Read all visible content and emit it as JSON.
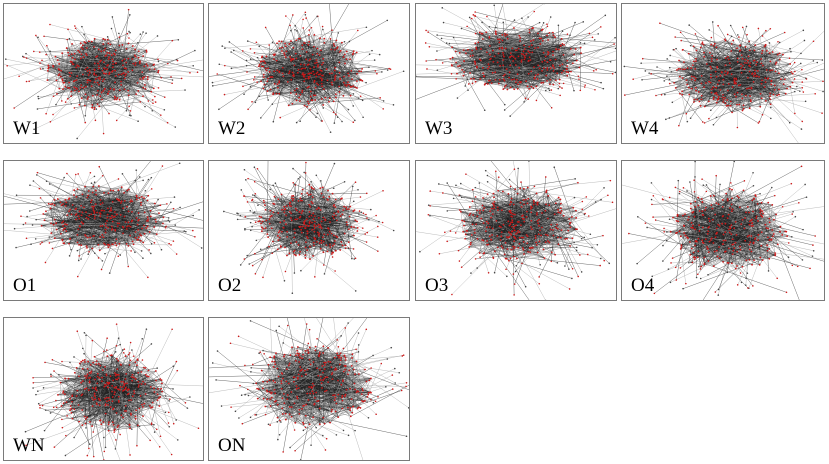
{
  "figure": {
    "panels": [
      {
        "id": "W1",
        "label": "W1"
      },
      {
        "id": "W2",
        "label": "W2"
      },
      {
        "id": "W3",
        "label": "W3"
      },
      {
        "id": "W4",
        "label": "W4"
      },
      {
        "id": "O1",
        "label": "O1"
      },
      {
        "id": "O2",
        "label": "O2"
      },
      {
        "id": "O3",
        "label": "O3"
      },
      {
        "id": "O4",
        "label": "O4"
      },
      {
        "id": "WN",
        "label": "WN"
      },
      {
        "id": "ON",
        "label": "ON"
      }
    ],
    "colors": {
      "node": "#cc1a1a",
      "edge": "#1f1f1f",
      "peripheral_edge": "#9a9a9a",
      "border": "#7a7a7a"
    }
  }
}
